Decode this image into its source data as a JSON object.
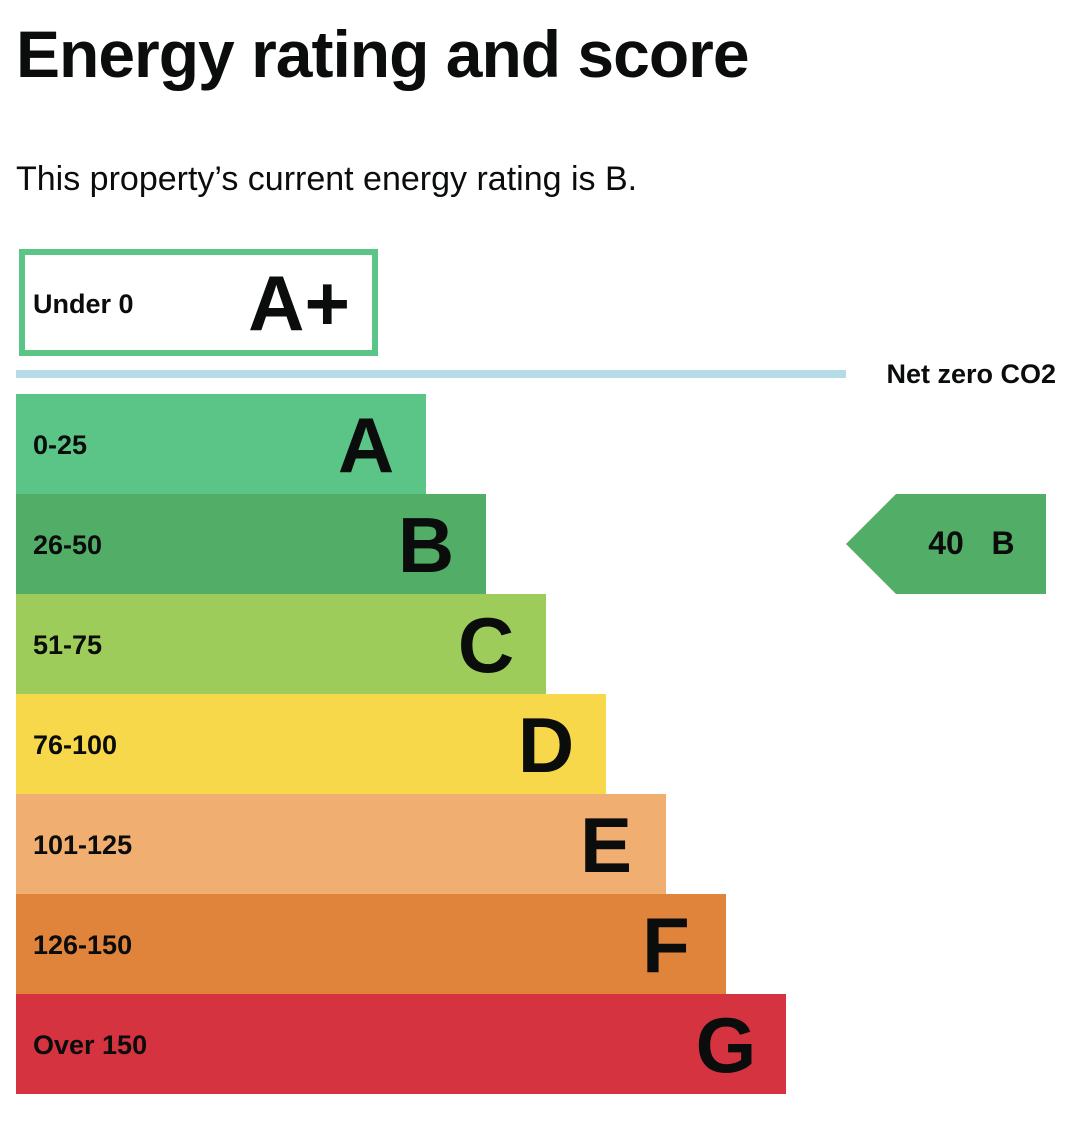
{
  "page": {
    "title": "Energy rating and score",
    "intro": "This property’s current energy rating is B."
  },
  "chart_data": {
    "type": "bar",
    "title": "",
    "xlabel": "",
    "ylabel": "",
    "net_zero_label": "Net zero CO2",
    "bands": [
      {
        "letter": "A+",
        "range": "Under 0",
        "color": "#5bc588",
        "style": "outline"
      },
      {
        "letter": "A",
        "range": "0-25",
        "color": "#5bc588"
      },
      {
        "letter": "B",
        "range": "26-50",
        "color": "#52ae66"
      },
      {
        "letter": "C",
        "range": "51-75",
        "color": "#9dcc5a"
      },
      {
        "letter": "D",
        "range": "76-100",
        "color": "#f7d84a"
      },
      {
        "letter": "E",
        "range": "101-125",
        "color": "#f0ae71"
      },
      {
        "letter": "F",
        "range": "126-150",
        "color": "#e0843c"
      },
      {
        "letter": "G",
        "range": "Over 150",
        "color": "#d63340"
      }
    ],
    "current": {
      "score": "40",
      "letter": "B",
      "band_index": 2,
      "color": "#52ae66"
    },
    "divider_color": "#b4dbe6"
  }
}
